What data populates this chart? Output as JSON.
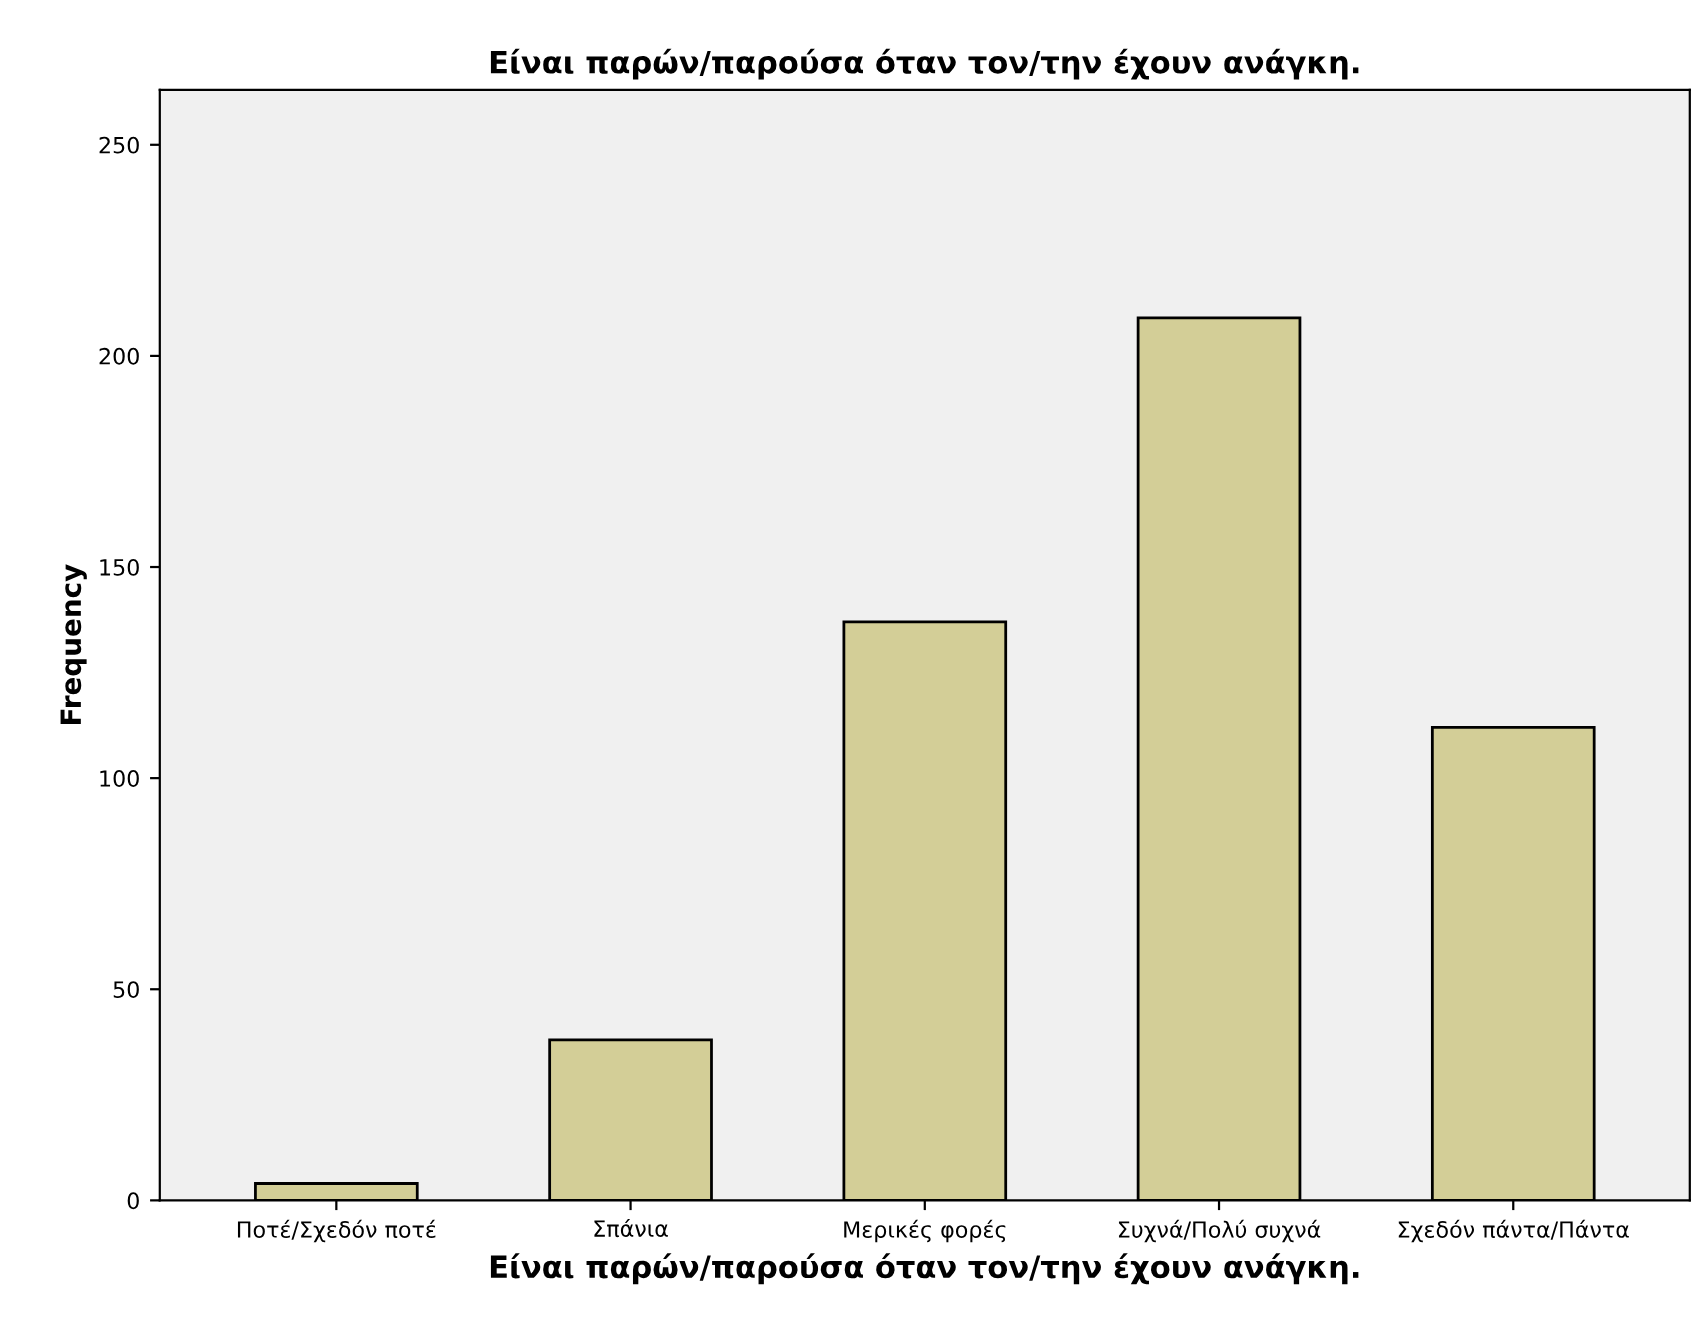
{
  "chart_data": {
    "type": "bar",
    "title": "Είναι παρών/παρούσα όταν τον/την έχουν ανάγκη.",
    "xlabel": "Είναι παρών/παρούσα όταν τον/την έχουν ανάγκη.",
    "ylabel": "Frequency",
    "categories": [
      "Ποτέ/Σχεδόν ποτέ",
      "Σπάνια",
      "Μερικές φορές",
      "Συχνά/Πολύ συχνά",
      "Σχεδόν πάντα/Πάντα"
    ],
    "values": [
      4,
      38,
      137,
      209,
      112
    ],
    "color": "#d3ce97",
    "ylim": [
      0,
      263
    ],
    "yticks": [
      0,
      50,
      100,
      150,
      200,
      250
    ],
    "grid": false
  }
}
